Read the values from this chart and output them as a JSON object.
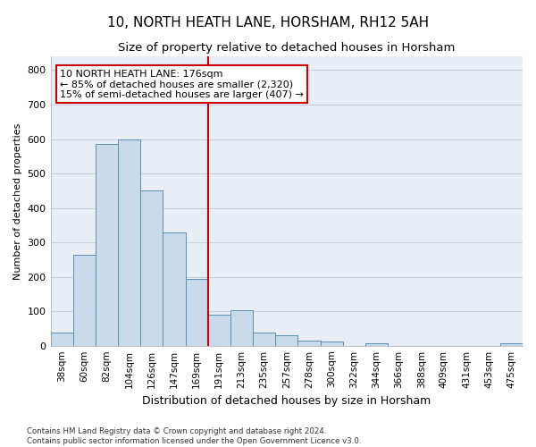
{
  "title": "10, NORTH HEATH LANE, HORSHAM, RH12 5AH",
  "subtitle": "Size of property relative to detached houses in Horsham",
  "xlabel": "Distribution of detached houses by size in Horsham",
  "ylabel": "Number of detached properties",
  "categories": [
    "38sqm",
    "60sqm",
    "82sqm",
    "104sqm",
    "126sqm",
    "147sqm",
    "169sqm",
    "191sqm",
    "213sqm",
    "235sqm",
    "257sqm",
    "278sqm",
    "300sqm",
    "322sqm",
    "344sqm",
    "366sqm",
    "388sqm",
    "409sqm",
    "431sqm",
    "453sqm",
    "475sqm"
  ],
  "values": [
    37,
    265,
    585,
    600,
    450,
    330,
    195,
    90,
    103,
    38,
    30,
    15,
    12,
    0,
    7,
    0,
    0,
    0,
    0,
    0,
    7
  ],
  "bar_color": "#c9daea",
  "bar_edge_color": "#5a8db0",
  "red_line_index": 6.5,
  "annotation_text": "10 NORTH HEATH LANE: 176sqm\n← 85% of detached houses are smaller (2,320)\n15% of semi-detached houses are larger (407) →",
  "annotation_box_color": "#ffffff",
  "annotation_box_edge_color": "#cc0000",
  "grid_color": "#c5cfe0",
  "background_color": "#e8eef5",
  "footer_text": "Contains HM Land Registry data © Crown copyright and database right 2024.\nContains public sector information licensed under the Open Government Licence v3.0.",
  "ylim": [
    0,
    840
  ],
  "yticks": [
    0,
    100,
    200,
    300,
    400,
    500,
    600,
    700,
    800
  ],
  "title_fontsize": 11,
  "subtitle_fontsize": 9.5
}
